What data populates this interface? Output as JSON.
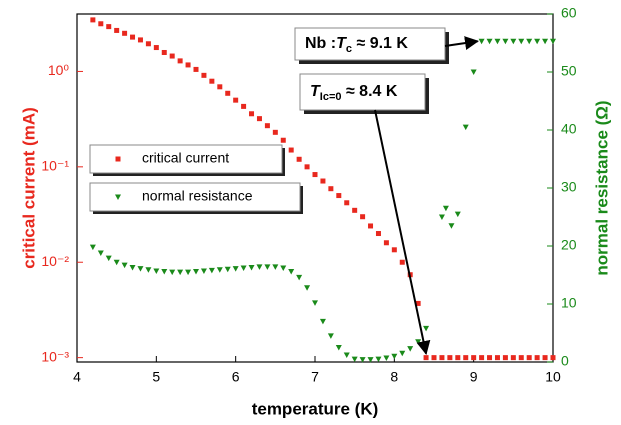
{
  "chart_data": {
    "type": "scatter",
    "xlabel": "temperature (K)",
    "ylabel": "critical current (mA)",
    "y2label": "normal resistance (Ω)",
    "yscale": "log",
    "xlim": [
      4,
      10
    ],
    "xticks": [
      4,
      5,
      6,
      7,
      8,
      9,
      10
    ],
    "ylim": [
      0.0009,
      4
    ],
    "yticks": [
      {
        "value": 0.001,
        "label": "10⁻³"
      },
      {
        "value": 0.01,
        "label": "10⁻²"
      },
      {
        "value": 0.1,
        "label": "10⁻¹"
      },
      {
        "value": 1,
        "label": "10⁰"
      }
    ],
    "y2lim": [
      0,
      60
    ],
    "y2ticks": [
      0,
      10,
      20,
      30,
      40,
      50,
      60
    ],
    "series": [
      {
        "name": "critical current",
        "color": "#e8281e",
        "marker": "square",
        "x": [
          4.2,
          4.3,
          4.4,
          4.5,
          4.6,
          4.7,
          4.8,
          4.9,
          5.0,
          5.1,
          5.2,
          5.3,
          5.4,
          5.5,
          5.6,
          5.7,
          5.8,
          5.9,
          6.0,
          6.1,
          6.2,
          6.3,
          6.4,
          6.5,
          6.6,
          6.7,
          6.8,
          6.9,
          7.0,
          7.1,
          7.2,
          7.3,
          7.4,
          7.5,
          7.6,
          7.7,
          7.8,
          7.9,
          8.0,
          8.1,
          8.2,
          8.3,
          8.4,
          8.5,
          8.6,
          8.7,
          8.8,
          8.9,
          9.0,
          9.1,
          9.2,
          9.3,
          9.4,
          9.5,
          9.6,
          9.7,
          9.8,
          9.9,
          10.0
        ],
        "values": [
          3.47,
          3.16,
          2.95,
          2.69,
          2.51,
          2.29,
          2.14,
          1.95,
          1.78,
          1.58,
          1.45,
          1.29,
          1.17,
          1.05,
          0.91,
          0.79,
          0.69,
          0.59,
          0.5,
          0.43,
          0.36,
          0.32,
          0.27,
          0.23,
          0.19,
          0.15,
          0.12,
          0.1,
          0.083,
          0.071,
          0.059,
          0.05,
          0.042,
          0.035,
          0.03,
          0.024,
          0.02,
          0.016,
          0.0135,
          0.01,
          0.0074,
          0.0037,
          0.001,
          0.001,
          0.001,
          0.001,
          0.001,
          0.001,
          0.001,
          0.001,
          0.001,
          0.001,
          0.001,
          0.001,
          0.001,
          0.001,
          0.001,
          0.001,
          0.001
        ]
      },
      {
        "name": "normal resistance",
        "color": "#1a8a1a",
        "marker": "triangle-down",
        "axis": "y2",
        "x": [
          4.2,
          4.3,
          4.4,
          4.5,
          4.6,
          4.7,
          4.8,
          4.9,
          5.0,
          5.1,
          5.2,
          5.3,
          5.4,
          5.5,
          5.6,
          5.7,
          5.8,
          5.9,
          6.0,
          6.1,
          6.2,
          6.3,
          6.4,
          6.5,
          6.6,
          6.7,
          6.8,
          6.9,
          7.0,
          7.1,
          7.2,
          7.3,
          7.4,
          7.5,
          7.6,
          7.7,
          7.8,
          7.9,
          8.0,
          8.1,
          8.2,
          8.3,
          8.4,
          8.6,
          8.65,
          8.72,
          8.8,
          8.9,
          9.0,
          9.1,
          9.2,
          9.3,
          9.4,
          9.5,
          9.6,
          9.7,
          9.8,
          9.9,
          10.0
        ],
        "values": [
          19.8,
          18.8,
          17.9,
          17.2,
          16.7,
          16.3,
          16.1,
          15.9,
          15.7,
          15.6,
          15.5,
          15.5,
          15.5,
          15.6,
          15.7,
          15.8,
          15.9,
          16.0,
          16.1,
          16.2,
          16.3,
          16.4,
          16.4,
          16.4,
          16.2,
          15.6,
          14.6,
          12.8,
          10.2,
          7.0,
          4.5,
          2.5,
          1.2,
          0.5,
          0.4,
          0.4,
          0.5,
          0.7,
          1.0,
          1.5,
          2.3,
          3.5,
          5.8,
          25,
          26.5,
          23.5,
          25.5,
          40.5,
          50,
          55.3,
          55.3,
          55.3,
          55.3,
          55.3,
          55.3,
          55.3,
          55.3,
          55.3,
          55.3
        ]
      }
    ],
    "annotations": [
      {
        "parts": [
          "Nb :",
          "T",
          "c",
          " ≈ 9.1 K"
        ]
      },
      {
        "parts": [
          "T",
          "Ic=0",
          " ≈ 8.4 K"
        ]
      }
    ]
  }
}
